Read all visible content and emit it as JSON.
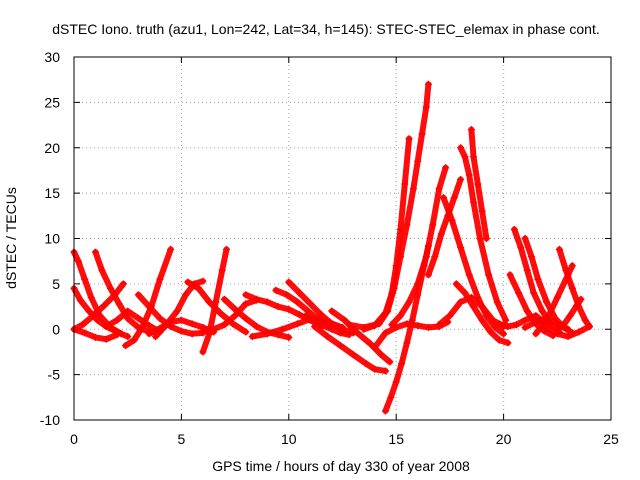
{
  "chart_data": {
    "type": "scatter",
    "title": "dSTEC Iono. truth (azu1, Lon=242, Lat=34, h=145): STEC-STEC_elemax in phase cont.",
    "xlabel": "GPS time / hours of day 330 of year 2008",
    "ylabel": "dSTEC  / TECUs",
    "xlim": [
      0,
      25
    ],
    "ylim": [
      -10,
      30
    ],
    "x_ticks": [
      0,
      5,
      10,
      15,
      20,
      25
    ],
    "y_ticks": [
      -10,
      -5,
      0,
      5,
      10,
      15,
      20,
      25,
      30
    ],
    "x_tick_labels": [
      "0",
      "5",
      "10",
      "15",
      "20",
      "25"
    ],
    "y_tick_labels": [
      "-10",
      "-5",
      "0",
      "5",
      "10",
      "15",
      "20",
      "25",
      "30"
    ],
    "grid": true,
    "marker": "+",
    "color": "#ff0000",
    "series": [
      {
        "x": [
          0.0,
          0.2,
          0.5,
          0.8,
          1.2,
          1.7,
          2.2
        ],
        "y": [
          8.5,
          7.5,
          5.5,
          3.5,
          1.5,
          0.2,
          -0.5
        ]
      },
      {
        "x": [
          0.0,
          0.3,
          0.7,
          1.1,
          1.5,
          2.0,
          2.5
        ],
        "y": [
          4.5,
          3.2,
          2.0,
          1.0,
          0.3,
          -0.3,
          -0.8
        ]
      },
      {
        "x": [
          0.0,
          0.4,
          0.9,
          1.4,
          1.9,
          2.3
        ],
        "y": [
          0.0,
          0.5,
          1.5,
          2.6,
          3.8,
          5.0
        ]
      },
      {
        "x": [
          0.0,
          0.5,
          1.0,
          1.5,
          2.0
        ],
        "y": [
          0.0,
          -0.4,
          -0.9,
          -1.1,
          -0.6
        ]
      },
      {
        "x": [
          1.0,
          1.3,
          1.7,
          2.1,
          2.5,
          3.0,
          3.5
        ],
        "y": [
          8.5,
          6.5,
          4.5,
          2.8,
          1.2,
          0.2,
          -0.3
        ]
      },
      {
        "x": [
          2.4,
          2.8,
          3.2,
          3.6,
          4.0,
          4.5
        ],
        "y": [
          -1.8,
          -1.2,
          0.3,
          2.5,
          5.5,
          8.8
        ]
      },
      {
        "x": [
          1.5,
          2.0,
          2.5,
          3.0,
          3.5,
          4.0
        ],
        "y": [
          0.3,
          1.0,
          2.0,
          1.2,
          0.4,
          -0.3
        ]
      },
      {
        "x": [
          3.0,
          3.5,
          4.0,
          4.5,
          5.0,
          5.5,
          6.0
        ],
        "y": [
          3.8,
          2.5,
          1.2,
          0.3,
          -0.2,
          -0.5,
          -0.4
        ]
      },
      {
        "x": [
          3.5,
          4.0,
          4.5,
          5.0,
          5.5,
          6.0,
          6.5
        ],
        "y": [
          -0.5,
          0.1,
          0.8,
          1.0,
          0.6,
          0.2,
          -0.3
        ]
      },
      {
        "x": [
          3.8,
          4.3,
          4.8,
          5.2,
          5.6,
          6.0
        ],
        "y": [
          -0.8,
          0.5,
          2.0,
          3.8,
          5.0,
          5.3
        ]
      },
      {
        "x": [
          5.3,
          5.8,
          6.3,
          6.8,
          7.4,
          8.0
        ],
        "y": [
          5.2,
          4.5,
          3.0,
          1.8,
          0.6,
          -0.3
        ]
      },
      {
        "x": [
          6.0,
          6.3,
          6.6,
          6.9,
          7.1
        ],
        "y": [
          -2.5,
          -0.5,
          3.0,
          6.5,
          8.8
        ]
      },
      {
        "x": [
          6.0,
          6.5,
          7.0,
          7.5,
          8.0,
          8.5
        ],
        "y": [
          -0.2,
          0.0,
          0.5,
          1.5,
          2.8,
          3.2
        ]
      },
      {
        "x": [
          7.0,
          7.5,
          8.0,
          8.5,
          9.0,
          9.5,
          10.0
        ],
        "y": [
          3.3,
          2.2,
          1.2,
          0.3,
          -0.3,
          -0.6,
          -0.9
        ]
      },
      {
        "x": [
          8.0,
          8.5,
          9.0,
          9.5,
          10.0,
          10.5,
          11.0,
          11.5
        ],
        "y": [
          3.8,
          3.3,
          3.0,
          2.5,
          2.2,
          1.6,
          1.0,
          0.4
        ]
      },
      {
        "x": [
          8.3,
          9.0,
          9.7,
          10.4,
          11.1,
          11.8,
          12.5
        ],
        "y": [
          -0.8,
          -0.5,
          0.0,
          0.6,
          1.2,
          0.8,
          0.2
        ]
      },
      {
        "x": [
          9.4,
          9.9,
          10.4,
          10.9,
          11.4,
          11.9
        ],
        "y": [
          4.3,
          3.8,
          3.0,
          2.0,
          1.0,
          0.3
        ]
      },
      {
        "x": [
          10.0,
          10.5,
          11.0,
          11.5,
          12.0,
          12.5,
          13.0
        ],
        "y": [
          5.2,
          4.0,
          2.8,
          1.6,
          0.6,
          0.0,
          -0.4
        ]
      },
      {
        "x": [
          10.8,
          11.2,
          11.6,
          12.0,
          12.4,
          12.8
        ],
        "y": [
          1.5,
          1.0,
          0.4,
          0.0,
          -0.4,
          -0.6
        ]
      },
      {
        "x": [
          11.2,
          11.8,
          12.4,
          13.0,
          13.6,
          14.0,
          14.5
        ],
        "y": [
          0.3,
          -0.8,
          -1.8,
          -2.8,
          -3.8,
          -4.4,
          -4.6
        ]
      },
      {
        "x": [
          12.0,
          12.6,
          13.2,
          13.8,
          14.3,
          14.7
        ],
        "y": [
          2.0,
          1.0,
          -0.4,
          -1.6,
          -2.8,
          -3.6
        ]
      },
      {
        "x": [
          14.5,
          14.75,
          15.0,
          15.25,
          15.5,
          15.75,
          16.0,
          16.3,
          16.5
        ],
        "y": [
          -9.0,
          -7.5,
          -5.8,
          -3.8,
          -1.5,
          1.0,
          3.8,
          7.0,
          9.2
        ]
      },
      {
        "x": [
          12.8,
          13.5,
          14.2,
          14.6,
          14.9,
          15.2,
          15.5,
          15.8,
          16.0,
          16.2,
          16.4,
          16.5
        ],
        "y": [
          0.5,
          0.2,
          0.6,
          2.0,
          4.5,
          8.0,
          11.5,
          15.5,
          18.5,
          21.5,
          24.5,
          27.0
        ]
      },
      {
        "x": [
          13.5,
          14.0,
          14.5,
          14.8,
          15.0,
          15.2,
          15.4,
          15.6
        ],
        "y": [
          0.0,
          0.4,
          1.8,
          4.0,
          7.0,
          11.0,
          16.0,
          21.0
        ]
      },
      {
        "x": [
          14.8,
          15.2,
          15.6,
          16.0,
          16.4,
          16.7,
          17.0,
          17.3
        ],
        "y": [
          0.5,
          1.5,
          3.0,
          5.0,
          8.0,
          11.5,
          15.5,
          17.8
        ]
      },
      {
        "x": [
          14.0,
          14.5,
          15.0,
          15.5,
          16.0,
          16.5,
          17.0,
          17.4
        ],
        "y": [
          -2.0,
          -0.4,
          0.2,
          0.6,
          0.4,
          0.2,
          0.3,
          0.8
        ]
      },
      {
        "x": [
          17.2,
          17.6,
          18.0,
          18.4,
          18.8,
          19.2,
          19.6,
          20.0
        ],
        "y": [
          14.5,
          12.0,
          9.0,
          6.0,
          3.5,
          1.5,
          0.2,
          -0.5
        ]
      },
      {
        "x": [
          17.8,
          18.2,
          18.6,
          19.0,
          19.4,
          19.8,
          20.2
        ],
        "y": [
          5.0,
          4.0,
          2.5,
          1.0,
          -0.3,
          -1.2,
          -1.5
        ]
      },
      {
        "x": [
          17.0,
          17.5,
          18.0,
          18.5,
          19.0,
          19.5,
          20.0
        ],
        "y": [
          0.5,
          1.5,
          3.0,
          3.5,
          2.5,
          1.0,
          0.3
        ]
      },
      {
        "x": [
          16.5,
          16.8,
          17.1,
          17.4,
          17.7,
          18.0
        ],
        "y": [
          6.0,
          8.0,
          10.5,
          12.5,
          14.5,
          16.5
        ]
      },
      {
        "x": [
          18.0,
          18.2,
          18.4,
          18.6,
          18.9,
          19.3,
          19.7,
          20.1
        ],
        "y": [
          20.0,
          19.0,
          17.0,
          14.0,
          10.0,
          6.0,
          3.0,
          1.0
        ]
      },
      {
        "x": [
          18.5,
          18.6,
          18.8,
          19.0,
          19.2
        ],
        "y": [
          22.0,
          19.0,
          16.0,
          13.0,
          10.0
        ]
      },
      {
        "x": [
          20.5,
          20.8,
          21.1,
          21.4,
          21.8,
          22.2,
          22.6
        ],
        "y": [
          11.0,
          9.0,
          6.5,
          4.0,
          2.0,
          0.6,
          -0.3
        ]
      },
      {
        "x": [
          21.0,
          21.3,
          21.6,
          22.0,
          22.4,
          22.8,
          23.2
        ],
        "y": [
          10.0,
          8.0,
          5.5,
          3.0,
          1.2,
          0.2,
          -0.4
        ]
      },
      {
        "x": [
          20.3,
          20.7,
          21.1,
          21.5,
          21.9,
          22.3
        ],
        "y": [
          6.0,
          4.0,
          2.0,
          0.6,
          -0.2,
          -0.7
        ]
      },
      {
        "x": [
          19.8,
          20.2,
          20.6,
          21.0,
          21.5,
          22.0
        ],
        "y": [
          0.6,
          0.3,
          0.5,
          1.0,
          1.5,
          0.5
        ]
      },
      {
        "x": [
          22.6,
          22.9,
          23.2,
          23.5,
          23.8,
          24.0
        ],
        "y": [
          8.8,
          6.5,
          4.5,
          2.5,
          1.0,
          0.3
        ]
      },
      {
        "x": [
          21.5,
          22.0,
          22.5,
          23.0,
          23.2
        ],
        "y": [
          -0.5,
          1.0,
          3.5,
          6.0,
          7.0
        ]
      },
      {
        "x": [
          22.0,
          22.5,
          23.0,
          23.5,
          24.0
        ],
        "y": [
          0.2,
          -0.5,
          -0.8,
          -0.3,
          0.3
        ]
      },
      {
        "x": [
          22.5,
          22.8,
          23.1,
          23.4,
          23.6
        ],
        "y": [
          0.0,
          0.5,
          1.5,
          2.6,
          3.3
        ]
      },
      {
        "x": [
          21.0,
          21.5,
          22.0,
          22.5,
          23.0
        ],
        "y": [
          0.2,
          0.8,
          1.2,
          0.6,
          0.0
        ]
      }
    ]
  }
}
